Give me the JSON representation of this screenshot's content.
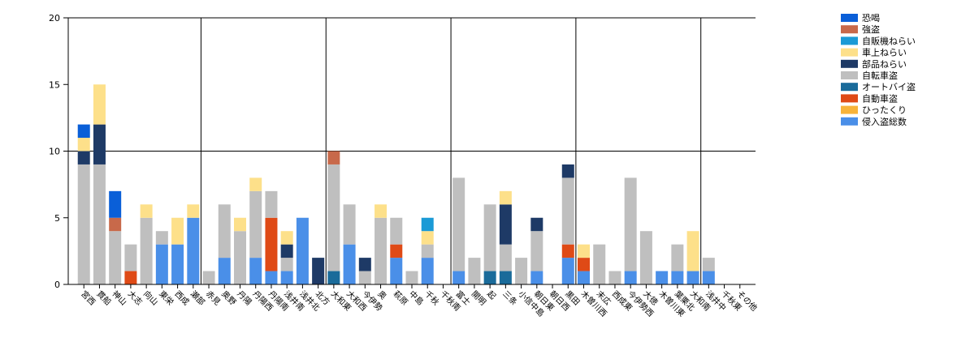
{
  "chart_data": {
    "type": "bar",
    "stacked": true,
    "ylim": [
      0,
      20
    ],
    "yticks": [
      0,
      5,
      10,
      15,
      20
    ],
    "grid": "horizontal lines at 10 and 20; vertical lines every 8 categories",
    "legend_position": "top-right",
    "categories": [
      "宮西",
      "貫船",
      "神山",
      "大志",
      "向山",
      "東栄",
      "西成",
      "瀬部",
      "赤見",
      "奥野",
      "丹陽",
      "丹陽西",
      "丹陽南",
      "浅井南",
      "浅井北",
      "北方",
      "大和東",
      "大和西",
      "今伊勢",
      "奥",
      "萩原",
      "中島",
      "千秋",
      "千秋南",
      "富士",
      "開明",
      "起",
      "三条",
      "小信中島",
      "朝日東",
      "朝日西",
      "黒田",
      "木曽川西",
      "末広",
      "西成東",
      "今伊勢西",
      "大徳",
      "木曽川東",
      "葉栗北",
      "大和南",
      "浅井中",
      "千秋東",
      "その他"
    ],
    "series": [
      {
        "name": "侵入盗総数",
        "color": "#4a8fe8",
        "values": [
          0,
          0,
          0,
          0,
          0,
          3,
          3,
          5,
          0,
          2,
          0,
          2,
          1,
          1,
          5,
          0,
          0,
          3,
          0,
          0,
          2,
          0,
          2,
          0,
          1,
          0,
          0,
          0,
          0,
          1,
          0,
          2,
          1,
          0,
          0,
          1,
          0,
          1,
          1,
          1,
          1,
          0,
          0
        ]
      },
      {
        "name": "ひったくり",
        "color": "#f7b33a",
        "values": [
          0,
          0,
          0,
          0,
          0,
          0,
          0,
          0,
          0,
          0,
          0,
          0,
          0,
          0,
          0,
          0,
          0,
          0,
          0,
          0,
          0,
          0,
          0,
          0,
          0,
          0,
          0,
          0,
          0,
          0,
          0,
          0,
          0,
          0,
          0,
          0,
          0,
          0,
          0,
          0,
          0,
          0,
          0
        ]
      },
      {
        "name": "自動車盗",
        "color": "#df4a16",
        "values": [
          0,
          0,
          0,
          1,
          0,
          0,
          0,
          0,
          0,
          0,
          0,
          0,
          4,
          0,
          0,
          0,
          0,
          0,
          0,
          0,
          1,
          0,
          0,
          0,
          0,
          0,
          0,
          0,
          0,
          0,
          0,
          1,
          1,
          0,
          0,
          0,
          0,
          0,
          0,
          0,
          0,
          0,
          0
        ]
      },
      {
        "name": "オートバイ盗",
        "color": "#1a6b9a",
        "values": [
          0,
          0,
          0,
          0,
          0,
          0,
          0,
          0,
          0,
          0,
          0,
          0,
          0,
          0,
          0,
          0,
          1,
          0,
          0,
          0,
          0,
          0,
          0,
          0,
          0,
          0,
          1,
          1,
          0,
          0,
          0,
          0,
          0,
          0,
          0,
          0,
          0,
          0,
          0,
          0,
          0,
          0,
          0
        ]
      },
      {
        "name": "自転車盗",
        "color": "#bfbfbf",
        "values": [
          9,
          9,
          4,
          2,
          5,
          1,
          0,
          0,
          1,
          4,
          4,
          5,
          2,
          1,
          0,
          0,
          8,
          3,
          1,
          5,
          2,
          1,
          1,
          0,
          7,
          2,
          5,
          2,
          2,
          3,
          0,
          5,
          0,
          3,
          1,
          7,
          4,
          0,
          2,
          0,
          1,
          0,
          0
        ]
      },
      {
        "name": "部品ねらい",
        "color": "#1e3a66",
        "values": [
          1,
          3,
          0,
          0,
          0,
          0,
          0,
          0,
          0,
          0,
          0,
          0,
          0,
          1,
          0,
          2,
          0,
          0,
          1,
          0,
          0,
          0,
          0,
          0,
          0,
          0,
          0,
          3,
          0,
          1,
          0,
          1,
          0,
          0,
          0,
          0,
          0,
          0,
          0,
          0,
          0,
          0,
          0
        ]
      },
      {
        "name": "車上ねらい",
        "color": "#fde08a",
        "values": [
          1,
          3,
          0,
          0,
          1,
          0,
          2,
          1,
          0,
          0,
          1,
          1,
          0,
          1,
          0,
          0,
          0,
          0,
          0,
          1,
          0,
          0,
          1,
          0,
          0,
          0,
          0,
          1,
          0,
          0,
          0,
          0,
          1,
          0,
          0,
          0,
          0,
          0,
          0,
          3,
          0,
          0,
          0
        ]
      },
      {
        "name": "自販機ねらい",
        "color": "#1b9ad6",
        "values": [
          0,
          0,
          0,
          0,
          0,
          0,
          0,
          0,
          0,
          0,
          0,
          0,
          0,
          0,
          0,
          0,
          0,
          0,
          0,
          0,
          0,
          0,
          1,
          0,
          0,
          0,
          0,
          0,
          0,
          0,
          0,
          0,
          0,
          0,
          0,
          0,
          0,
          0,
          0,
          0,
          0,
          0,
          0
        ]
      },
      {
        "name": "強盗",
        "color": "#c8694a",
        "values": [
          0,
          0,
          1,
          0,
          0,
          0,
          0,
          0,
          0,
          0,
          0,
          0,
          0,
          0,
          0,
          0,
          1,
          0,
          0,
          0,
          0,
          0,
          0,
          0,
          0,
          0,
          0,
          0,
          0,
          0,
          0,
          0,
          0,
          0,
          0,
          0,
          0,
          0,
          0,
          0,
          0,
          0,
          0
        ]
      },
      {
        "name": "恐喝",
        "color": "#0a5fd8",
        "values": [
          1,
          0,
          2,
          0,
          0,
          0,
          0,
          0,
          0,
          0,
          0,
          0,
          0,
          0,
          0,
          0,
          0,
          0,
          0,
          0,
          0,
          0,
          0,
          0,
          0,
          0,
          0,
          0,
          0,
          0,
          0,
          0,
          0,
          0,
          0,
          0,
          0,
          0,
          0,
          0,
          0,
          0,
          0
        ]
      }
    ],
    "legend_order": [
      "恐喝",
      "強盗",
      "自販機ねらい",
      "車上ねらい",
      "部品ねらい",
      "自転車盗",
      "オートバイ盗",
      "自動車盗",
      "ひったくり",
      "侵入盗総数"
    ]
  }
}
